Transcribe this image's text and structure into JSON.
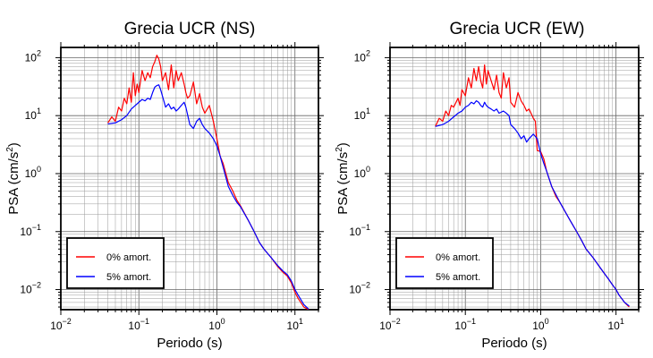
{
  "chart_data": [
    {
      "type": "line",
      "title": "Grecia UCR (NS)",
      "xlabel": "Periodo (s)",
      "ylabel_base": "PSA (cm/s",
      "ylabel_sup": "2",
      "ylabel_close": ")",
      "x_scale": "log",
      "y_scale": "log",
      "xlim": [
        0.01,
        20
      ],
      "ylim": [
        0.0045,
        150
      ],
      "grid": true,
      "legend_position": "bottom-left",
      "x_ticks": [
        {
          "base": "10",
          "exp": "−2",
          "value": 0.01
        },
        {
          "base": "10",
          "exp": "−1",
          "value": 0.1
        },
        {
          "base": "10",
          "exp": "0",
          "value": 1
        },
        {
          "base": "10",
          "exp": "1",
          "value": 10
        }
      ],
      "y_ticks": [
        {
          "base": "10",
          "exp": "−2",
          "value": 0.01
        },
        {
          "base": "10",
          "exp": "−1",
          "value": 0.1
        },
        {
          "base": "10",
          "exp": "0",
          "value": 1
        },
        {
          "base": "10",
          "exp": "1",
          "value": 10
        },
        {
          "base": "10",
          "exp": "2",
          "value": 100
        }
      ],
      "series": [
        {
          "name": "0% amort.",
          "color": "#ff0000",
          "points": [
            [
              0.04,
              7.5
            ],
            [
              0.045,
              9.5
            ],
            [
              0.05,
              8.0
            ],
            [
              0.055,
              14
            ],
            [
              0.06,
              12
            ],
            [
              0.065,
              20
            ],
            [
              0.07,
              16
            ],
            [
              0.075,
              30
            ],
            [
              0.08,
              17
            ],
            [
              0.085,
              55
            ],
            [
              0.09,
              22
            ],
            [
              0.095,
              35
            ],
            [
              0.1,
              25
            ],
            [
              0.11,
              60
            ],
            [
              0.12,
              40
            ],
            [
              0.13,
              55
            ],
            [
              0.14,
              45
            ],
            [
              0.15,
              70
            ],
            [
              0.16,
              85
            ],
            [
              0.17,
              110
            ],
            [
              0.18,
              95
            ],
            [
              0.19,
              70
            ],
            [
              0.2,
              40
            ],
            [
              0.22,
              55
            ],
            [
              0.24,
              28
            ],
            [
              0.26,
              75
            ],
            [
              0.28,
              30
            ],
            [
              0.3,
              60
            ],
            [
              0.32,
              40
            ],
            [
              0.35,
              55
            ],
            [
              0.38,
              35
            ],
            [
              0.4,
              25
            ],
            [
              0.42,
              20
            ],
            [
              0.45,
              22
            ],
            [
              0.5,
              38
            ],
            [
              0.55,
              16
            ],
            [
              0.6,
              24
            ],
            [
              0.65,
              14
            ],
            [
              0.7,
              11
            ],
            [
              0.8,
              15
            ],
            [
              0.9,
              8
            ],
            [
              1.0,
              4.0
            ],
            [
              1.1,
              2.0
            ],
            [
              1.2,
              1.5
            ],
            [
              1.4,
              0.7
            ],
            [
              1.6,
              0.5
            ],
            [
              1.8,
              0.35
            ],
            [
              2.0,
              0.28
            ],
            [
              2.5,
              0.16
            ],
            [
              3.0,
              0.1
            ],
            [
              3.5,
              0.065
            ],
            [
              4.0,
              0.05
            ],
            [
              5.0,
              0.035
            ],
            [
              6.0,
              0.025
            ],
            [
              7.0,
              0.02
            ],
            [
              8.0,
              0.017
            ],
            [
              9.0,
              0.013
            ],
            [
              10.0,
              0.009
            ],
            [
              11.0,
              0.007
            ],
            [
              13.0,
              0.005
            ],
            [
              15.0,
              0.0045
            ]
          ]
        },
        {
          "name": "5% amort.",
          "color": "#0000ff",
          "points": [
            [
              0.04,
              7.2
            ],
            [
              0.05,
              7.5
            ],
            [
              0.06,
              8.5
            ],
            [
              0.07,
              10
            ],
            [
              0.08,
              13
            ],
            [
              0.09,
              15
            ],
            [
              0.1,
              17
            ],
            [
              0.11,
              19
            ],
            [
              0.12,
              18
            ],
            [
              0.13,
              20
            ],
            [
              0.14,
              19
            ],
            [
              0.15,
              25
            ],
            [
              0.16,
              31
            ],
            [
              0.17,
              33
            ],
            [
              0.18,
              34
            ],
            [
              0.19,
              28
            ],
            [
              0.2,
              22
            ],
            [
              0.22,
              14
            ],
            [
              0.24,
              16
            ],
            [
              0.26,
              13
            ],
            [
              0.28,
              14
            ],
            [
              0.3,
              12
            ],
            [
              0.32,
              13
            ],
            [
              0.35,
              15
            ],
            [
              0.38,
              17
            ],
            [
              0.4,
              14
            ],
            [
              0.45,
              7
            ],
            [
              0.5,
              6
            ],
            [
              0.55,
              8
            ],
            [
              0.6,
              9
            ],
            [
              0.65,
              7
            ],
            [
              0.7,
              6
            ],
            [
              0.8,
              5
            ],
            [
              0.9,
              4
            ],
            [
              1.0,
              3.0
            ],
            [
              1.1,
              2.0
            ],
            [
              1.2,
              1.3
            ],
            [
              1.4,
              0.6
            ],
            [
              1.6,
              0.42
            ],
            [
              1.8,
              0.32
            ],
            [
              2.0,
              0.27
            ],
            [
              2.5,
              0.16
            ],
            [
              3.0,
              0.1
            ],
            [
              3.5,
              0.065
            ],
            [
              4.0,
              0.05
            ],
            [
              5.0,
              0.035
            ],
            [
              6.0,
              0.026
            ],
            [
              7.0,
              0.021
            ],
            [
              8.0,
              0.018
            ],
            [
              9.0,
              0.014
            ],
            [
              10.0,
              0.01
            ],
            [
              11.0,
              0.008
            ],
            [
              13.0,
              0.0055
            ],
            [
              15.0,
              0.0046
            ]
          ]
        }
      ]
    },
    {
      "type": "line",
      "title": "Grecia UCR (EW)",
      "xlabel": "Periodo (s)",
      "ylabel_base": "PSA (cm/s",
      "ylabel_sup": "2",
      "ylabel_close": ")",
      "x_scale": "log",
      "y_scale": "log",
      "xlim": [
        0.01,
        20
      ],
      "ylim": [
        0.0045,
        150
      ],
      "grid": true,
      "legend_position": "bottom-left",
      "x_ticks": [
        {
          "base": "10",
          "exp": "−2",
          "value": 0.01
        },
        {
          "base": "10",
          "exp": "−1",
          "value": 0.1
        },
        {
          "base": "10",
          "exp": "0",
          "value": 1
        },
        {
          "base": "10",
          "exp": "1",
          "value": 10
        }
      ],
      "y_ticks": [
        {
          "base": "10",
          "exp": "−2",
          "value": 0.01
        },
        {
          "base": "10",
          "exp": "−1",
          "value": 0.1
        },
        {
          "base": "10",
          "exp": "0",
          "value": 1
        },
        {
          "base": "10",
          "exp": "1",
          "value": 10
        },
        {
          "base": "10",
          "exp": "2",
          "value": 100
        }
      ],
      "series": [
        {
          "name": "0% amort.",
          "color": "#ff0000",
          "points": [
            [
              0.04,
              6.5
            ],
            [
              0.045,
              9
            ],
            [
              0.05,
              8
            ],
            [
              0.055,
              12
            ],
            [
              0.06,
              10
            ],
            [
              0.065,
              15
            ],
            [
              0.07,
              14
            ],
            [
              0.08,
              20
            ],
            [
              0.085,
              15
            ],
            [
              0.09,
              28
            ],
            [
              0.1,
              22
            ],
            [
              0.11,
              45
            ],
            [
              0.12,
              30
            ],
            [
              0.13,
              65
            ],
            [
              0.14,
              40
            ],
            [
              0.15,
              70
            ],
            [
              0.16,
              40
            ],
            [
              0.17,
              30
            ],
            [
              0.18,
              75
            ],
            [
              0.19,
              35
            ],
            [
              0.2,
              60
            ],
            [
              0.22,
              40
            ],
            [
              0.24,
              28
            ],
            [
              0.26,
              50
            ],
            [
              0.28,
              25
            ],
            [
              0.3,
              20
            ],
            [
              0.32,
              55
            ],
            [
              0.35,
              30
            ],
            [
              0.38,
              45
            ],
            [
              0.4,
              17
            ],
            [
              0.45,
              14
            ],
            [
              0.5,
              25
            ],
            [
              0.55,
              18
            ],
            [
              0.6,
              15
            ],
            [
              0.65,
              12
            ],
            [
              0.7,
              13
            ],
            [
              0.8,
              9
            ],
            [
              0.85,
              8
            ],
            [
              0.9,
              2.5
            ],
            [
              1.0,
              2.4
            ],
            [
              1.1,
              1.8
            ],
            [
              1.2,
              1.1
            ],
            [
              1.4,
              0.6
            ],
            [
              1.6,
              0.4
            ],
            [
              1.8,
              0.32
            ],
            [
              2.0,
              0.25
            ],
            [
              2.5,
              0.15
            ],
            [
              3.0,
              0.1
            ],
            [
              3.5,
              0.07
            ],
            [
              4.0,
              0.05
            ],
            [
              5.0,
              0.035
            ],
            [
              6.0,
              0.025
            ],
            [
              7.0,
              0.019
            ],
            [
              8.0,
              0.015
            ],
            [
              9.0,
              0.012
            ],
            [
              10.0,
              0.01
            ],
            [
              11.0,
              0.008
            ],
            [
              13.0,
              0.006
            ],
            [
              15.0,
              0.005
            ]
          ]
        },
        {
          "name": "5% amort.",
          "color": "#0000ff",
          "points": [
            [
              0.04,
              6.5
            ],
            [
              0.05,
              7
            ],
            [
              0.06,
              8
            ],
            [
              0.07,
              9.5
            ],
            [
              0.08,
              11
            ],
            [
              0.09,
              12
            ],
            [
              0.1,
              14
            ],
            [
              0.11,
              15
            ],
            [
              0.12,
              17
            ],
            [
              0.13,
              16
            ],
            [
              0.14,
              18
            ],
            [
              0.15,
              17
            ],
            [
              0.16,
              15
            ],
            [
              0.17,
              14
            ],
            [
              0.18,
              17
            ],
            [
              0.19,
              15
            ],
            [
              0.2,
              14
            ],
            [
              0.22,
              13
            ],
            [
              0.24,
              12
            ],
            [
              0.26,
              13
            ],
            [
              0.28,
              11
            ],
            [
              0.3,
              11.5
            ],
            [
              0.32,
              12
            ],
            [
              0.35,
              11
            ],
            [
              0.38,
              10
            ],
            [
              0.4,
              7
            ],
            [
              0.45,
              6
            ],
            [
              0.5,
              5
            ],
            [
              0.55,
              4
            ],
            [
              0.6,
              4.5
            ],
            [
              0.65,
              3.5
            ],
            [
              0.7,
              4
            ],
            [
              0.8,
              4.8
            ],
            [
              0.9,
              4
            ],
            [
              1.0,
              2.2
            ],
            [
              1.1,
              1.5
            ],
            [
              1.2,
              1.1
            ],
            [
              1.4,
              0.6
            ],
            [
              1.6,
              0.43
            ],
            [
              1.8,
              0.32
            ],
            [
              2.0,
              0.25
            ],
            [
              2.5,
              0.15
            ],
            [
              3.0,
              0.1
            ],
            [
              3.5,
              0.07
            ],
            [
              4.0,
              0.05
            ],
            [
              5.0,
              0.035
            ],
            [
              6.0,
              0.025
            ],
            [
              7.0,
              0.019
            ],
            [
              8.0,
              0.015
            ],
            [
              9.0,
              0.012
            ],
            [
              10.0,
              0.01
            ],
            [
              11.0,
              0.008
            ],
            [
              13.0,
              0.006
            ],
            [
              15.0,
              0.0052
            ]
          ]
        }
      ]
    }
  ]
}
